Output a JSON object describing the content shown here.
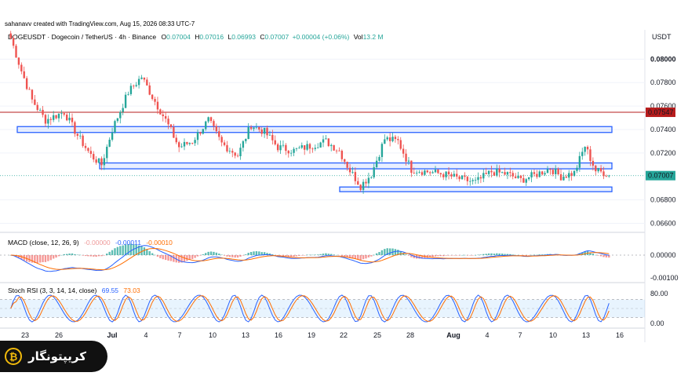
{
  "header": {
    "credit": "sahanavv created with TradingView.com, Aug 15, 2026 08:33 UTC-7",
    "symbol": "DOGEUSDT · Dogecoin / TetherUS · 4h · Binance",
    "o_label": "O",
    "o": "0.07004",
    "h_label": "H",
    "h": "0.07016",
    "l_label": "L",
    "l": "0.06993",
    "c_label": "C",
    "c": "0.07007",
    "change": "+0.00004 (+0.06%)",
    "vol_label": "Vol",
    "vol": "13.2 M"
  },
  "price_axis": {
    "currency": "USDT",
    "ticks": [
      "0.08000",
      "0.07800",
      "0.07600",
      "0.07400",
      "0.07200",
      "0.06800",
      "0.06600"
    ],
    "tick_values": [
      0.08,
      0.078,
      0.076,
      0.074,
      0.072,
      0.068,
      0.066
    ],
    "resistance_label": "0.07547",
    "resistance_value": 0.07547,
    "last_label": "0.07007",
    "last_value": 0.07007
  },
  "time_axis": {
    "labels": [
      "23",
      "26",
      "Jul",
      "4",
      "7",
      "10",
      "13",
      "16",
      "19",
      "22",
      "25",
      "28",
      "Aug",
      "4",
      "7",
      "10",
      "13",
      "16"
    ]
  },
  "macd": {
    "title": "MACD (close, 12, 26, 9)",
    "v1": "-0.00000",
    "v2": "-0.00011",
    "v3": "-0.00010",
    "ticks": [
      "0.00000",
      "-0.00100"
    ]
  },
  "stoch": {
    "title": "Stoch RSI (3, 3, 14, 14, close)",
    "k": "69.55",
    "d": "73.03",
    "ticks": [
      "80.00",
      "0.00"
    ]
  },
  "brand": {
    "name": "کریپتونگار"
  },
  "colors": {
    "up": "#26a69a",
    "down": "#ef5350",
    "box": "#2962ff",
    "resistance": "#b71c1c",
    "macd": "#2962ff",
    "signal": "#ff6d00",
    "k": "#2962ff",
    "d": "#ff6d00"
  },
  "chart_data": {
    "type": "candlestick",
    "ylim": [
      0.0655,
      0.0825
    ],
    "zones": [
      {
        "from": 0.07375,
        "to": 0.07425
      },
      {
        "from": 0.07065,
        "to": 0.07115
      },
      {
        "from": 0.0687,
        "to": 0.0691
      }
    ],
    "anchors": [
      [
        0,
        0.0818
      ],
      [
        4,
        0.079
      ],
      [
        8,
        0.0765
      ],
      [
        13,
        0.0748
      ],
      [
        20,
        0.0755
      ],
      [
        25,
        0.0735
      ],
      [
        30,
        0.0718
      ],
      [
        34,
        0.071
      ],
      [
        38,
        0.074
      ],
      [
        44,
        0.0772
      ],
      [
        49,
        0.0785
      ],
      [
        53,
        0.0768
      ],
      [
        58,
        0.0748
      ],
      [
        63,
        0.0725
      ],
      [
        68,
        0.073
      ],
      [
        74,
        0.0748
      ],
      [
        79,
        0.0728
      ],
      [
        85,
        0.0718
      ],
      [
        90,
        0.0744
      ],
      [
        95,
        0.0738
      ],
      [
        100,
        0.0725
      ],
      [
        106,
        0.0722
      ],
      [
        112,
        0.0726
      ],
      [
        118,
        0.073
      ],
      [
        123,
        0.0722
      ],
      [
        127,
        0.0705
      ],
      [
        131,
        0.0692
      ],
      [
        135,
        0.0702
      ],
      [
        140,
        0.0732
      ],
      [
        145,
        0.073
      ],
      [
        150,
        0.0706
      ],
      [
        156,
        0.0704
      ],
      [
        162,
        0.0702
      ],
      [
        168,
        0.0698
      ],
      [
        174,
        0.0695
      ],
      [
        180,
        0.0704
      ],
      [
        186,
        0.0702
      ],
      [
        191,
        0.0697
      ],
      [
        196,
        0.0701
      ],
      [
        202,
        0.0707
      ],
      [
        206,
        0.07
      ],
      [
        211,
        0.0703
      ],
      [
        215,
        0.0726
      ],
      [
        219,
        0.0705
      ],
      [
        224,
        0.0702
      ]
    ]
  }
}
